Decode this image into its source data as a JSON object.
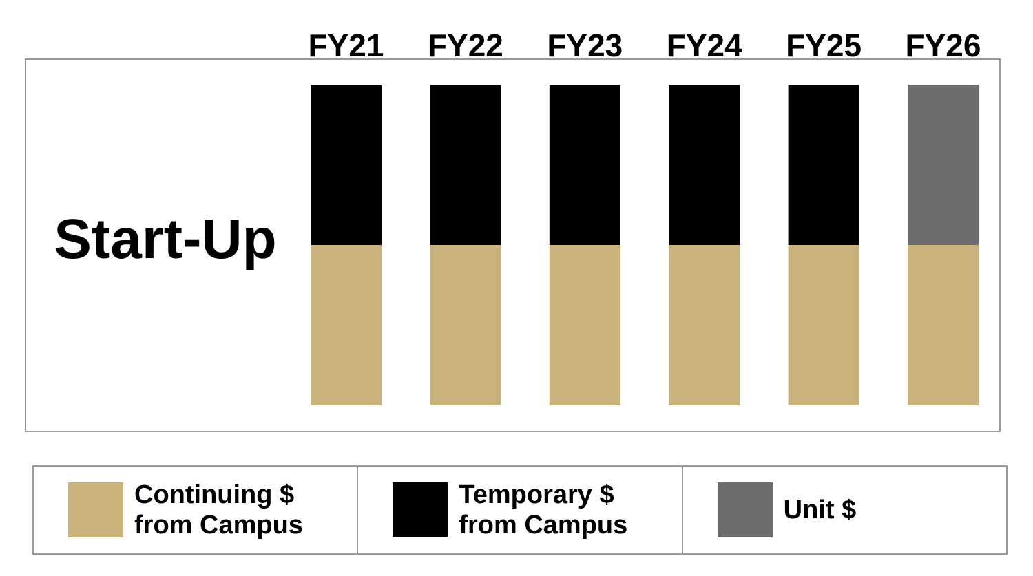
{
  "chart_data": {
    "type": "bar",
    "stacked": true,
    "row_label": "Start-Up",
    "categories": [
      "FY21",
      "FY22",
      "FY23",
      "FY24",
      "FY25",
      "FY26"
    ],
    "series": [
      {
        "key": "continuing",
        "name": "Continuing $ from Campus",
        "color": "#c9b27c",
        "values": [
          1,
          1,
          1,
          1,
          1,
          1
        ]
      },
      {
        "key": "temporary",
        "name": "Temporary $ from Campus",
        "color": "#000000",
        "values": [
          1,
          1,
          1,
          1,
          1,
          0
        ]
      },
      {
        "key": "unit",
        "name": "Unit $",
        "color": "#6b6c6e",
        "values": [
          0,
          0,
          0,
          0,
          0,
          1
        ]
      }
    ],
    "ylim": [
      0,
      2
    ],
    "grid": false,
    "legend_position": "bottom"
  },
  "legend": [
    {
      "label": "Continuing $ from Campus",
      "color": "#c9b27c"
    },
    {
      "label": "Temporary $ from Campus",
      "color": "#000000"
    },
    {
      "label": "Unit $",
      "color": "#6b6c6e"
    }
  ]
}
